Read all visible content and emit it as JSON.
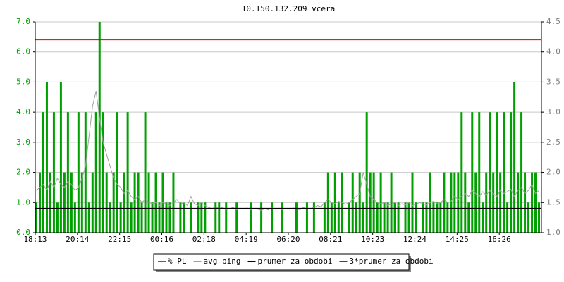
{
  "chart_data": {
    "type": "bar-line",
    "title": "10.150.132.209 vcera",
    "categories": [
      "18:13",
      null,
      null,
      null,
      null,
      null,
      null,
      null,
      null,
      null,
      null,
      null,
      "20:14",
      null,
      null,
      null,
      null,
      null,
      null,
      null,
      null,
      null,
      null,
      null,
      "22:15",
      null,
      null,
      null,
      null,
      null,
      null,
      null,
      null,
      null,
      null,
      null,
      "00:16",
      null,
      null,
      null,
      null,
      null,
      null,
      null,
      null,
      null,
      null,
      null,
      "02:18",
      null,
      null,
      null,
      null,
      null,
      null,
      null,
      null,
      null,
      null,
      null,
      "04:19",
      null,
      null,
      null,
      null,
      null,
      null,
      null,
      null,
      null,
      null,
      null,
      "06:20",
      null,
      null,
      null,
      null,
      null,
      null,
      null,
      null,
      null,
      null,
      null,
      "08:21",
      null,
      null,
      null,
      null,
      null,
      null,
      null,
      null,
      null,
      null,
      null,
      "10:23",
      null,
      null,
      null,
      null,
      null,
      null,
      null,
      null,
      null,
      null,
      null,
      "12:24",
      null,
      null,
      null,
      null,
      null,
      null,
      null,
      null,
      null,
      null,
      null,
      "14:25",
      null,
      null,
      null,
      null,
      null,
      null,
      null,
      null,
      null,
      null,
      null,
      "16:26",
      null,
      null,
      null,
      null,
      null,
      null,
      null,
      null,
      null,
      null,
      null
    ],
    "ylim": [
      0,
      7
    ],
    "yticks": [
      {
        "value": 0,
        "label": "0.0"
      },
      {
        "value": 1,
        "label": "1.0"
      },
      {
        "value": 2,
        "label": "2.0"
      },
      {
        "value": 3,
        "label": "3.0"
      },
      {
        "value": 4,
        "label": "4.0"
      },
      {
        "value": 5,
        "label": "5.0"
      },
      {
        "value": 6,
        "label": "6.0"
      },
      {
        "value": 7,
        "label": "7.0"
      }
    ],
    "y2lim": [
      1,
      4.5
    ],
    "y2ticks": [
      {
        "value": 1,
        "label": "1.0"
      },
      1.5,
      {
        "value": 2,
        "label": "2.0"
      },
      2.5,
      {
        "value": 3,
        "label": "3.0"
      },
      3.5,
      {
        "value": 4,
        "label": "4.0"
      },
      4.5
    ],
    "grid": true,
    "legend": "bottom",
    "series": [
      {
        "name": "% PL",
        "color": "#00a000",
        "kind": "bar",
        "axis": "y",
        "values": [
          1,
          2,
          4,
          5,
          2,
          4,
          1,
          5,
          2,
          4,
          2,
          1,
          4,
          2,
          4,
          1,
          2,
          4,
          7,
          4,
          2,
          1,
          2,
          4,
          1,
          2,
          4,
          1,
          2,
          2,
          1,
          4,
          2,
          1,
          2,
          1,
          2,
          1,
          1,
          2,
          0,
          1,
          1,
          0,
          1,
          0,
          1,
          1,
          1,
          0,
          0,
          1,
          1,
          0,
          1,
          0,
          0,
          1,
          0,
          0,
          0,
          1,
          0,
          0,
          1,
          0,
          0,
          1,
          0,
          0,
          1,
          0,
          0,
          0,
          1,
          0,
          0,
          1,
          0,
          1,
          0,
          0,
          1,
          2,
          1,
          2,
          1,
          2,
          0,
          1,
          2,
          1,
          2,
          1,
          4,
          2,
          2,
          1,
          2,
          1,
          1,
          2,
          1,
          1,
          0,
          1,
          1,
          2,
          1,
          0,
          1,
          1,
          2,
          1,
          1,
          1,
          2,
          1,
          2,
          2,
          2,
          4,
          2,
          1,
          4,
          2,
          4,
          1,
          2,
          4,
          2,
          4,
          2,
          4,
          1,
          4,
          5,
          2,
          4,
          2,
          1,
          2,
          2,
          1
        ]
      },
      {
        "name": "avg ping",
        "color": "#a0a0a0",
        "kind": "line",
        "axis": "y2",
        "values": [
          1.7,
          1.75,
          1.8,
          1.7,
          1.85,
          1.75,
          1.9,
          1.8,
          1.75,
          1.85,
          1.8,
          1.7,
          1.75,
          1.9,
          2.1,
          2.6,
          3.1,
          3.35,
          2.9,
          2.5,
          2.3,
          2.1,
          1.9,
          1.8,
          1.75,
          1.65,
          1.7,
          1.6,
          1.55,
          1.6,
          1.5,
          1.55,
          1.5,
          1.48,
          1.5,
          1.45,
          1.5,
          1.48,
          1.45,
          1.5,
          1.55,
          1.47,
          1.5,
          1.45,
          1.6,
          1.48,
          1.45,
          1.5,
          1.45,
          1.42,
          1.4,
          1.43,
          1.4,
          1.42,
          1.38,
          1.4,
          1.42,
          1.38,
          1.4,
          1.39,
          1.41,
          1.38,
          1.4,
          1.39,
          1.37,
          1.4,
          1.38,
          1.41,
          1.39,
          1.4,
          1.38,
          1.4,
          1.39,
          1.41,
          1.4,
          1.38,
          1.42,
          1.39,
          1.4,
          1.42,
          1.45,
          1.43,
          1.5,
          1.55,
          1.5,
          1.48,
          1.52,
          1.5,
          1.47,
          1.5,
          1.55,
          1.6,
          1.65,
          2.0,
          1.8,
          1.6,
          1.55,
          1.5,
          1.48,
          1.5,
          1.45,
          1.47,
          1.5,
          1.45,
          1.48,
          1.46,
          1.5,
          1.45,
          1.47,
          1.5,
          1.48,
          1.46,
          1.5,
          1.52,
          1.48,
          1.5,
          1.55,
          1.5,
          1.52,
          1.6,
          1.55,
          1.6,
          1.65,
          1.6,
          1.7,
          1.65,
          1.6,
          1.68,
          1.62,
          1.7,
          1.65,
          1.6,
          1.7,
          1.65,
          1.68,
          1.72,
          1.6,
          1.7,
          1.75,
          1.65,
          1.7,
          1.8,
          1.65,
          1.7
        ]
      },
      {
        "name": "prumer za obdobi",
        "color": "#000000",
        "kind": "hline",
        "axis": "y2",
        "value": 1.4
      },
      {
        "name": "3*prumer za obdobi",
        "color": "#e00000",
        "kind": "hline",
        "axis": "y2",
        "value": 4.2
      }
    ]
  }
}
